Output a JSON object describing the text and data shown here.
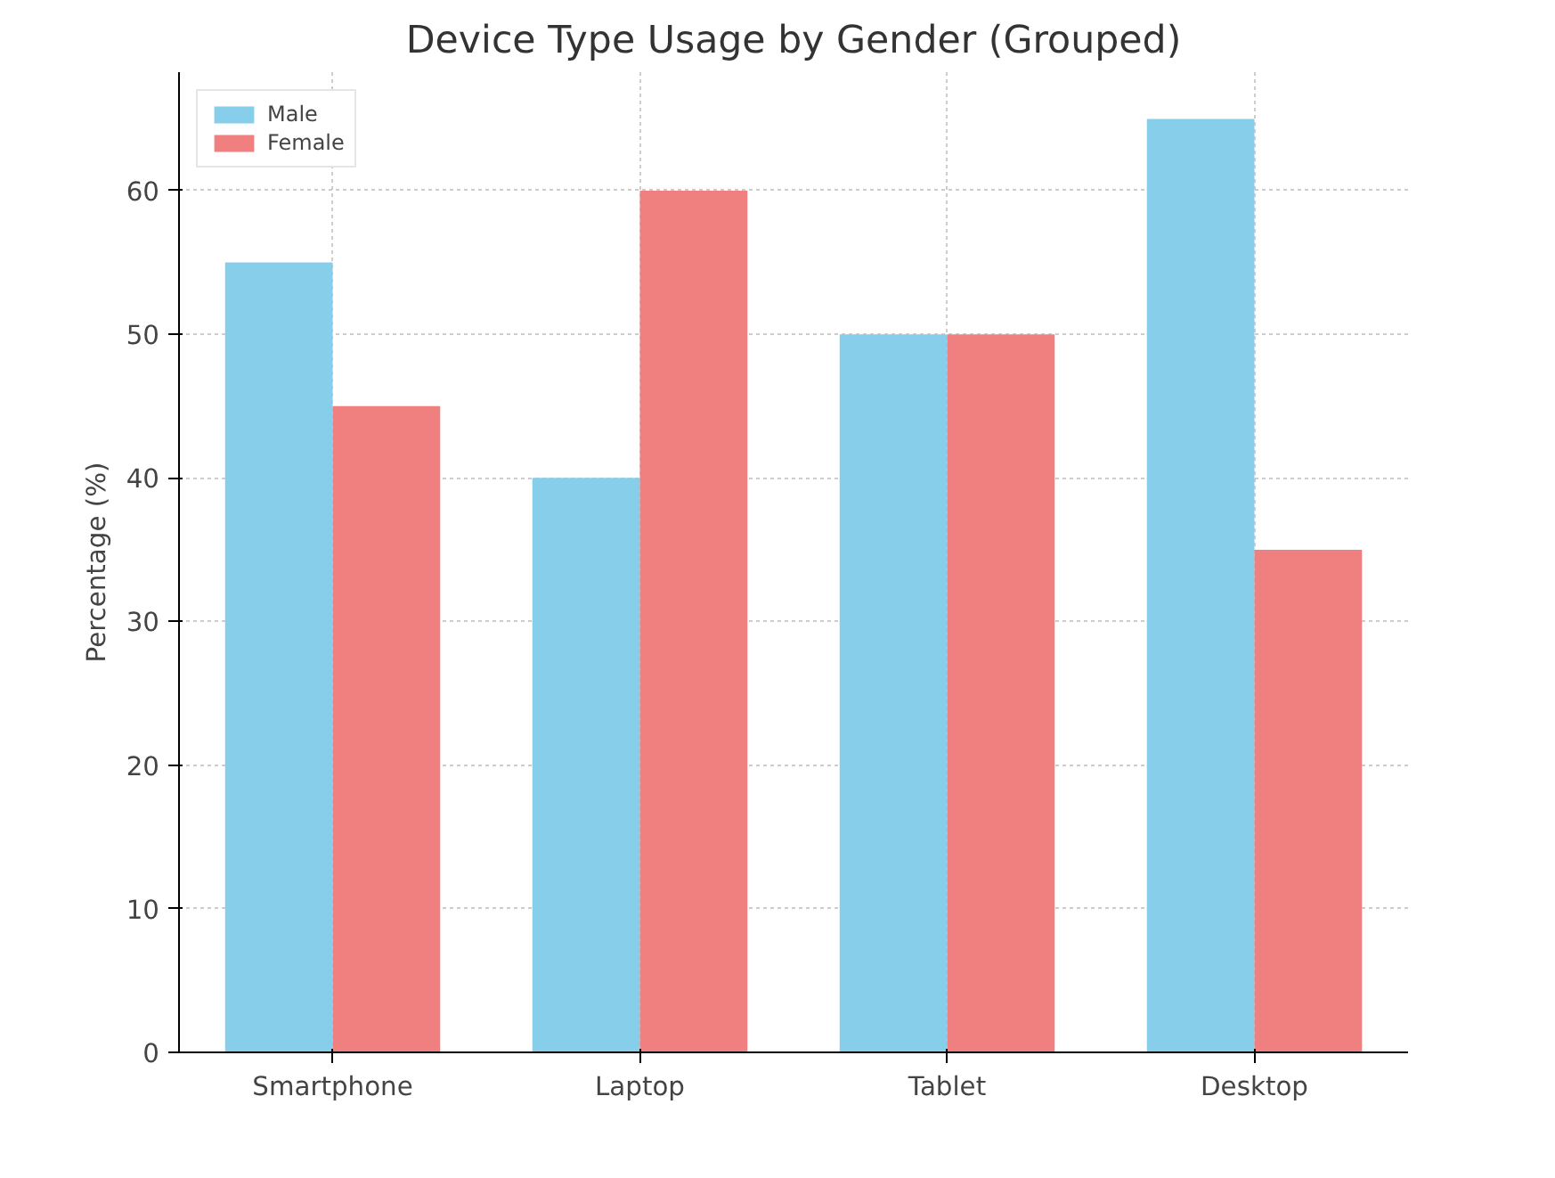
{
  "chart_data": {
    "type": "bar",
    "title": "Device Type Usage by Gender (Grouped)",
    "ylabel": "Percentage (%)",
    "categories": [
      "Smartphone",
      "Laptop",
      "Tablet",
      "Desktop"
    ],
    "series": [
      {
        "name": "Male",
        "color": "#87ceeb",
        "values": [
          55,
          40,
          50,
          65
        ]
      },
      {
        "name": "Female",
        "color": "#f08080",
        "values": [
          45,
          60,
          50,
          35
        ]
      }
    ],
    "ylim": [
      0,
      68.25
    ],
    "yticks": [
      0,
      10,
      20,
      30,
      40,
      50,
      60
    ],
    "grid": true,
    "legend": "top left"
  }
}
